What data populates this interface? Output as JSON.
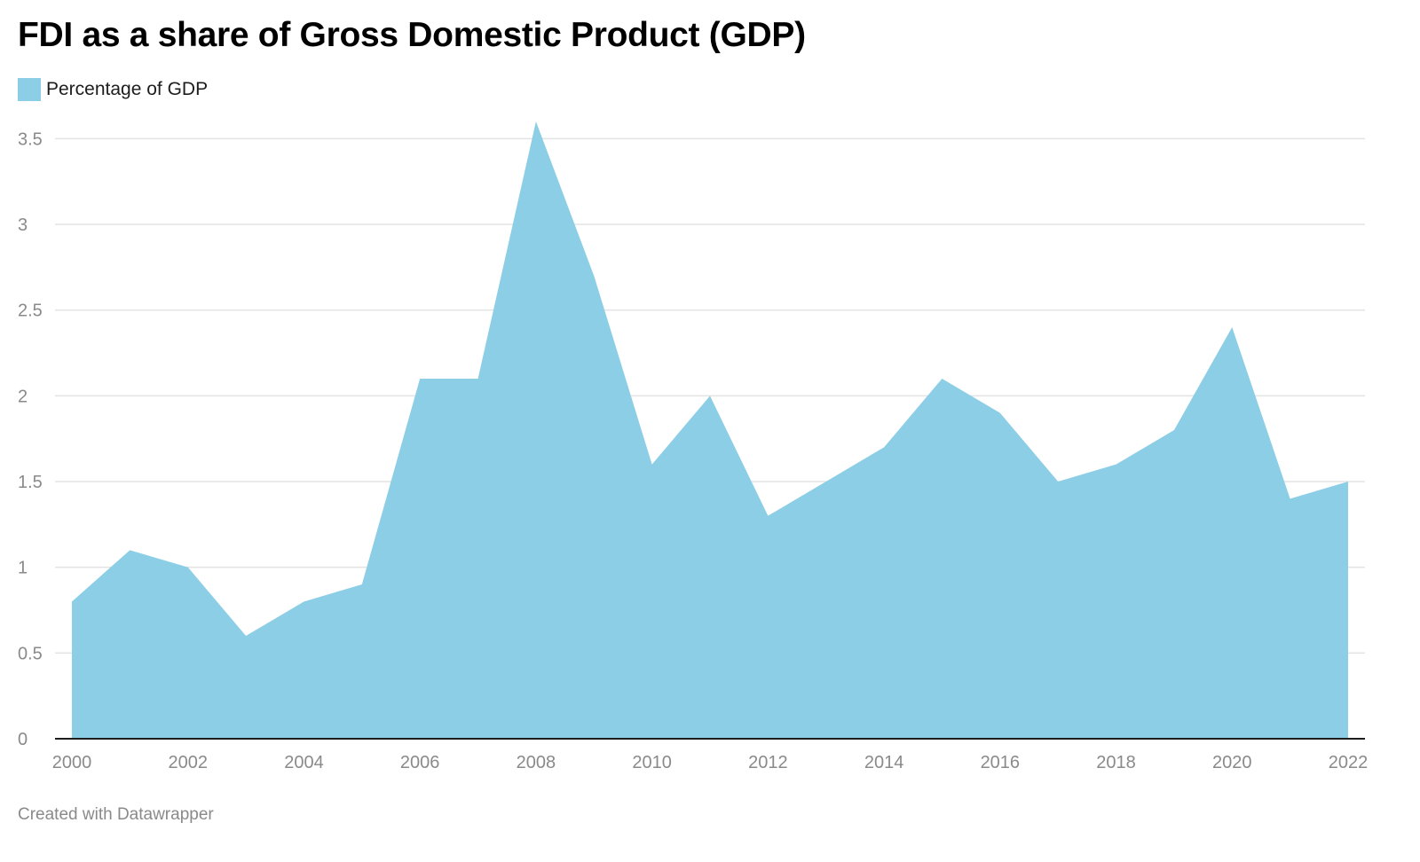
{
  "chart_data": {
    "type": "area",
    "title": "FDI as a share of Gross Domestic Product (GDP)",
    "xlabel": "",
    "ylabel": "",
    "x": [
      2000,
      2001,
      2002,
      2003,
      2004,
      2005,
      2006,
      2007,
      2008,
      2009,
      2010,
      2011,
      2012,
      2013,
      2014,
      2015,
      2016,
      2017,
      2018,
      2019,
      2020,
      2021,
      2022
    ],
    "x_ticks": [
      "2000",
      "2002",
      "2004",
      "2006",
      "2008",
      "2010",
      "2012",
      "2014",
      "2016",
      "2018",
      "2020",
      "2022"
    ],
    "y_ticks": [
      "0",
      "0.5",
      "1",
      "1.5",
      "2",
      "2.5",
      "3",
      "3.5"
    ],
    "xlim": [
      2000,
      2022
    ],
    "ylim": [
      0,
      3.6
    ],
    "grid": true,
    "legend_position": "top-left",
    "series": [
      {
        "name": "Percentage of GDP",
        "color": "#8ccee6",
        "values": [
          0.8,
          1.1,
          1.0,
          0.6,
          0.8,
          0.9,
          2.1,
          2.1,
          3.6,
          2.7,
          1.6,
          2.0,
          1.3,
          1.5,
          1.7,
          2.1,
          1.9,
          1.5,
          1.6,
          1.8,
          2.4,
          1.4,
          1.5
        ]
      }
    ]
  },
  "footer": {
    "credit": "Created with Datawrapper"
  },
  "colors": {
    "area": "#8ccee6",
    "grid": "#e3e3e3",
    "axis": "#1d1d1d",
    "tick_text": "#8a8a8a"
  }
}
